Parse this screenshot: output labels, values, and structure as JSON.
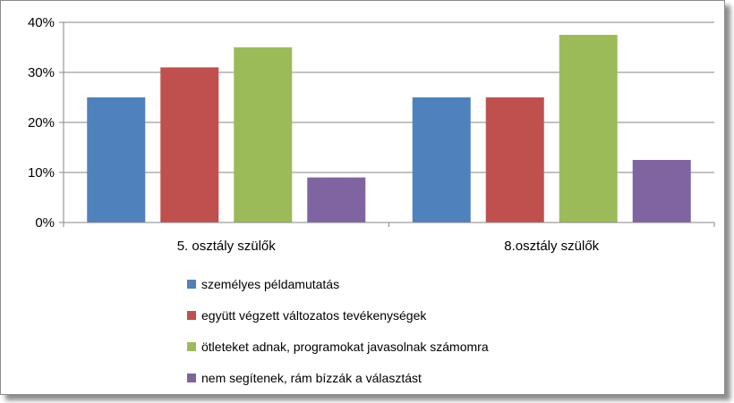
{
  "chart_data": {
    "type": "bar",
    "categories": [
      "5. osztály szülők",
      "8.osztály szülők"
    ],
    "series": [
      {
        "name": "személyes példamutatás",
        "values": [
          25,
          25
        ],
        "color": "#4f81bd"
      },
      {
        "name": "együtt végzett változatos tevékenységek",
        "values": [
          31,
          25
        ],
        "color": "#c0504d"
      },
      {
        "name": "ötleteket adnak, programokat javasolnak számomra",
        "values": [
          35,
          37.5
        ],
        "color": "#9bbb59"
      },
      {
        "name": "nem segítenek, rám bízzák a választást",
        "values": [
          9,
          12.5
        ],
        "color": "#8064a2"
      }
    ],
    "yticks": [
      "0%",
      "10%",
      "20%",
      "30%",
      "40%"
    ],
    "ylim": [
      0,
      40
    ],
    "grid": true,
    "legend_position": "bottom"
  }
}
